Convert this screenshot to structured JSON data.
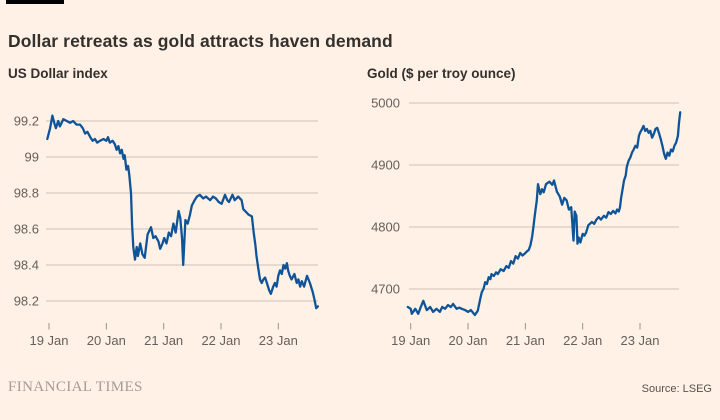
{
  "header": {
    "title": "Dollar retreats as gold attracts haven demand"
  },
  "footer": {
    "brand": "FINANCIAL TIMES",
    "source": "Source: LSEG"
  },
  "colors": {
    "background": "#fff1e5",
    "line": "#0f5499",
    "grid": "#ccc1b7",
    "tick_mark": "#9b9287",
    "axis_text": "#66605c",
    "title_text": "#33302e",
    "brand_bar": "#000000"
  },
  "chart_data": [
    {
      "type": "line",
      "title": "US Dollar index",
      "series_name": "us-dollar-index",
      "legend": "none",
      "grid": true,
      "xlabel": "",
      "ylabel": "",
      "xlim_days": [
        -0.06,
        4.72
      ],
      "ylim": [
        98.1,
        99.3
      ],
      "yticks": [
        {
          "v": 99.2,
          "label": "99.2"
        },
        {
          "v": 99.0,
          "label": "99"
        },
        {
          "v": 98.8,
          "label": "98.8"
        },
        {
          "v": 98.6,
          "label": "98.6"
        },
        {
          "v": 98.4,
          "label": "98.4"
        },
        {
          "v": 98.2,
          "label": "98.2"
        }
      ],
      "xticks": [
        {
          "day": 0,
          "label": "19 Jan"
        },
        {
          "day": 1,
          "label": "20 Jan"
        },
        {
          "day": 2,
          "label": "21 Jan"
        },
        {
          "day": 3,
          "label": "22 Jan"
        },
        {
          "day": 4,
          "label": "23 Jan"
        }
      ],
      "points": [
        [
          -0.03,
          99.1
        ],
        [
          0.02,
          99.16
        ],
        [
          0.06,
          99.23
        ],
        [
          0.09,
          99.19
        ],
        [
          0.12,
          99.16
        ],
        [
          0.16,
          99.2
        ],
        [
          0.19,
          99.17
        ],
        [
          0.25,
          99.21
        ],
        [
          0.31,
          99.2
        ],
        [
          0.37,
          99.19
        ],
        [
          0.42,
          99.2
        ],
        [
          0.48,
          99.18
        ],
        [
          0.54,
          99.18
        ],
        [
          0.59,
          99.16
        ],
        [
          0.63,
          99.13
        ],
        [
          0.67,
          99.14
        ],
        [
          0.72,
          99.11
        ],
        [
          0.76,
          99.09
        ],
        [
          0.8,
          99.1
        ],
        [
          0.84,
          99.08
        ],
        [
          0.89,
          99.09
        ],
        [
          0.95,
          99.1
        ],
        [
          1.0,
          99.09
        ],
        [
          1.03,
          99.11
        ],
        [
          1.06,
          99.08
        ],
        [
          1.11,
          99.09
        ],
        [
          1.15,
          99.07
        ],
        [
          1.18,
          99.04
        ],
        [
          1.21,
          99.06
        ],
        [
          1.24,
          99.02
        ],
        [
          1.27,
          99.04
        ],
        [
          1.3,
          98.99
        ],
        [
          1.32,
          99.01
        ],
        [
          1.35,
          98.93
        ],
        [
          1.38,
          98.95
        ],
        [
          1.4,
          98.9
        ],
        [
          1.43,
          98.8
        ],
        [
          1.45,
          98.62
        ],
        [
          1.47,
          98.5
        ],
        [
          1.5,
          98.43
        ],
        [
          1.53,
          98.5
        ],
        [
          1.55,
          98.45
        ],
        [
          1.59,
          98.52
        ],
        [
          1.63,
          98.46
        ],
        [
          1.67,
          98.44
        ],
        [
          1.72,
          98.57
        ],
        [
          1.78,
          98.61
        ],
        [
          1.82,
          98.55
        ],
        [
          1.86,
          98.56
        ],
        [
          1.91,
          98.53
        ],
        [
          1.94,
          98.49
        ],
        [
          1.98,
          98.52
        ],
        [
          2.01,
          98.55
        ],
        [
          2.05,
          98.52
        ],
        [
          2.09,
          98.58
        ],
        [
          2.13,
          98.56
        ],
        [
          2.17,
          98.63
        ],
        [
          2.21,
          98.58
        ],
        [
          2.26,
          98.7
        ],
        [
          2.29,
          98.66
        ],
        [
          2.32,
          98.55
        ],
        [
          2.34,
          98.4
        ],
        [
          2.38,
          98.65
        ],
        [
          2.42,
          98.63
        ],
        [
          2.46,
          98.68
        ],
        [
          2.49,
          98.73
        ],
        [
          2.54,
          98.76
        ],
        [
          2.58,
          98.78
        ],
        [
          2.63,
          98.79
        ],
        [
          2.69,
          98.77
        ],
        [
          2.74,
          98.78
        ],
        [
          2.81,
          98.76
        ],
        [
          2.86,
          98.78
        ],
        [
          2.91,
          98.77
        ],
        [
          2.96,
          98.75
        ],
        [
          3.01,
          98.74
        ],
        [
          3.07,
          98.79
        ],
        [
          3.11,
          98.76
        ],
        [
          3.14,
          98.75
        ],
        [
          3.2,
          98.79
        ],
        [
          3.24,
          98.76
        ],
        [
          3.3,
          98.78
        ],
        [
          3.36,
          98.76
        ],
        [
          3.39,
          98.71
        ],
        [
          3.42,
          98.7
        ],
        [
          3.48,
          98.68
        ],
        [
          3.54,
          98.67
        ],
        [
          3.57,
          98.58
        ],
        [
          3.6,
          98.51
        ],
        [
          3.62,
          98.45
        ],
        [
          3.65,
          98.38
        ],
        [
          3.68,
          98.32
        ],
        [
          3.71,
          98.3
        ],
        [
          3.74,
          98.32
        ],
        [
          3.77,
          98.33
        ],
        [
          3.8,
          98.3
        ],
        [
          3.84,
          98.26
        ],
        [
          3.87,
          98.24
        ],
        [
          3.91,
          98.28
        ],
        [
          3.94,
          98.3
        ],
        [
          3.97,
          98.28
        ],
        [
          4.0,
          98.34
        ],
        [
          4.03,
          98.37
        ],
        [
          4.06,
          98.35
        ],
        [
          4.09,
          98.4
        ],
        [
          4.12,
          98.38
        ],
        [
          4.15,
          98.41
        ],
        [
          4.17,
          98.37
        ],
        [
          4.2,
          98.34
        ],
        [
          4.23,
          98.32
        ],
        [
          4.28,
          98.35
        ],
        [
          4.32,
          98.3
        ],
        [
          4.35,
          98.32
        ],
        [
          4.38,
          98.28
        ],
        [
          4.41,
          98.31
        ],
        [
          4.45,
          98.28
        ],
        [
          4.5,
          98.34
        ],
        [
          4.55,
          98.3
        ],
        [
          4.6,
          98.25
        ],
        [
          4.63,
          98.21
        ],
        [
          4.66,
          98.16
        ],
        [
          4.69,
          98.17
        ]
      ]
    },
    {
      "type": "line",
      "title": "Gold ($ per troy ounce)",
      "series_name": "gold-price",
      "legend": "none",
      "grid": true,
      "xlabel": "",
      "ylabel": "",
      "xlim_days": [
        -0.06,
        4.72
      ],
      "ylim": [
        4640,
        5010
      ],
      "yticks": [
        {
          "v": 5000,
          "label": "5000"
        },
        {
          "v": 4900,
          "label": "4900"
        },
        {
          "v": 4800,
          "label": "4800"
        },
        {
          "v": 4700,
          "label": "4700"
        }
      ],
      "xticks": [
        {
          "day": 0,
          "label": "19 Jan"
        },
        {
          "day": 1,
          "label": "20 Jan"
        },
        {
          "day": 2,
          "label": "21 Jan"
        },
        {
          "day": 3,
          "label": "22 Jan"
        },
        {
          "day": 4,
          "label": "23 Jan"
        }
      ],
      "points": [
        [
          -0.05,
          4671
        ],
        [
          0.0,
          4668
        ],
        [
          0.02,
          4660
        ],
        [
          0.08,
          4668
        ],
        [
          0.13,
          4660
        ],
        [
          0.18,
          4672
        ],
        [
          0.22,
          4681
        ],
        [
          0.28,
          4666
        ],
        [
          0.34,
          4671
        ],
        [
          0.39,
          4663
        ],
        [
          0.45,
          4668
        ],
        [
          0.51,
          4663
        ],
        [
          0.55,
          4671
        ],
        [
          0.6,
          4668
        ],
        [
          0.65,
          4674
        ],
        [
          0.7,
          4671
        ],
        [
          0.74,
          4676
        ],
        [
          0.8,
          4668
        ],
        [
          0.85,
          4670
        ],
        [
          0.89,
          4668
        ],
        [
          0.95,
          4666
        ],
        [
          1.0,
          4663
        ],
        [
          1.05,
          4666
        ],
        [
          1.12,
          4658
        ],
        [
          1.17,
          4665
        ],
        [
          1.21,
          4683
        ],
        [
          1.24,
          4695
        ],
        [
          1.27,
          4700
        ],
        [
          1.3,
          4711
        ],
        [
          1.33,
          4708
        ],
        [
          1.36,
          4719
        ],
        [
          1.39,
          4716
        ],
        [
          1.41,
          4724
        ],
        [
          1.45,
          4721
        ],
        [
          1.49,
          4727
        ],
        [
          1.52,
          4724
        ],
        [
          1.57,
          4732
        ],
        [
          1.62,
          4729
        ],
        [
          1.67,
          4737
        ],
        [
          1.71,
          4734
        ],
        [
          1.75,
          4745
        ],
        [
          1.79,
          4741
        ],
        [
          1.83,
          4753
        ],
        [
          1.87,
          4749
        ],
        [
          1.91,
          4758
        ],
        [
          1.95,
          4754
        ],
        [
          2.0,
          4758
        ],
        [
          2.03,
          4761
        ],
        [
          2.06,
          4763
        ],
        [
          2.09,
          4771
        ],
        [
          2.12,
          4785
        ],
        [
          2.14,
          4800
        ],
        [
          2.16,
          4815
        ],
        [
          2.18,
          4830
        ],
        [
          2.2,
          4843
        ],
        [
          2.22,
          4869
        ],
        [
          2.26,
          4853
        ],
        [
          2.29,
          4861
        ],
        [
          2.32,
          4856
        ],
        [
          2.36,
          4869
        ],
        [
          2.42,
          4873
        ],
        [
          2.47,
          4868
        ],
        [
          2.5,
          4875
        ],
        [
          2.55,
          4857
        ],
        [
          2.6,
          4849
        ],
        [
          2.64,
          4836
        ],
        [
          2.68,
          4847
        ],
        [
          2.72,
          4843
        ],
        [
          2.76,
          4828
        ],
        [
          2.8,
          4832
        ],
        [
          2.84,
          4778
        ],
        [
          2.86,
          4825
        ],
        [
          2.89,
          4818
        ],
        [
          2.91,
          4773
        ],
        [
          2.93,
          4783
        ],
        [
          2.96,
          4775
        ],
        [
          3.0,
          4789
        ],
        [
          3.03,
          4786
        ],
        [
          3.06,
          4791
        ],
        [
          3.1,
          4803
        ],
        [
          3.16,
          4808
        ],
        [
          3.2,
          4805
        ],
        [
          3.24,
          4812
        ],
        [
          3.28,
          4816
        ],
        [
          3.32,
          4812
        ],
        [
          3.37,
          4818
        ],
        [
          3.41,
          4815
        ],
        [
          3.45,
          4824
        ],
        [
          3.49,
          4821
        ],
        [
          3.53,
          4826
        ],
        [
          3.57,
          4822
        ],
        [
          3.6,
          4828
        ],
        [
          3.63,
          4825
        ],
        [
          3.65,
          4832
        ],
        [
          3.67,
          4847
        ],
        [
          3.7,
          4863
        ],
        [
          3.72,
          4875
        ],
        [
          3.75,
          4883
        ],
        [
          3.77,
          4897
        ],
        [
          3.8,
          4907
        ],
        [
          3.83,
          4912
        ],
        [
          3.86,
          4920
        ],
        [
          3.89,
          4925
        ],
        [
          3.92,
          4931
        ],
        [
          3.95,
          4928
        ],
        [
          3.98,
          4947
        ],
        [
          4.0,
          4952
        ],
        [
          4.03,
          4957
        ],
        [
          4.06,
          4963
        ],
        [
          4.09,
          4955
        ],
        [
          4.12,
          4958
        ],
        [
          4.15,
          4952
        ],
        [
          4.18,
          4955
        ],
        [
          4.21,
          4944
        ],
        [
          4.24,
          4950
        ],
        [
          4.27,
          4958
        ],
        [
          4.3,
          4960
        ],
        [
          4.33,
          4952
        ],
        [
          4.36,
          4942
        ],
        [
          4.39,
          4931
        ],
        [
          4.42,
          4918
        ],
        [
          4.45,
          4910
        ],
        [
          4.48,
          4920
        ],
        [
          4.51,
          4915
        ],
        [
          4.54,
          4925
        ],
        [
          4.57,
          4922
        ],
        [
          4.6,
          4931
        ],
        [
          4.63,
          4936
        ],
        [
          4.66,
          4947
        ],
        [
          4.68,
          4968
        ],
        [
          4.7,
          4985
        ]
      ]
    }
  ]
}
